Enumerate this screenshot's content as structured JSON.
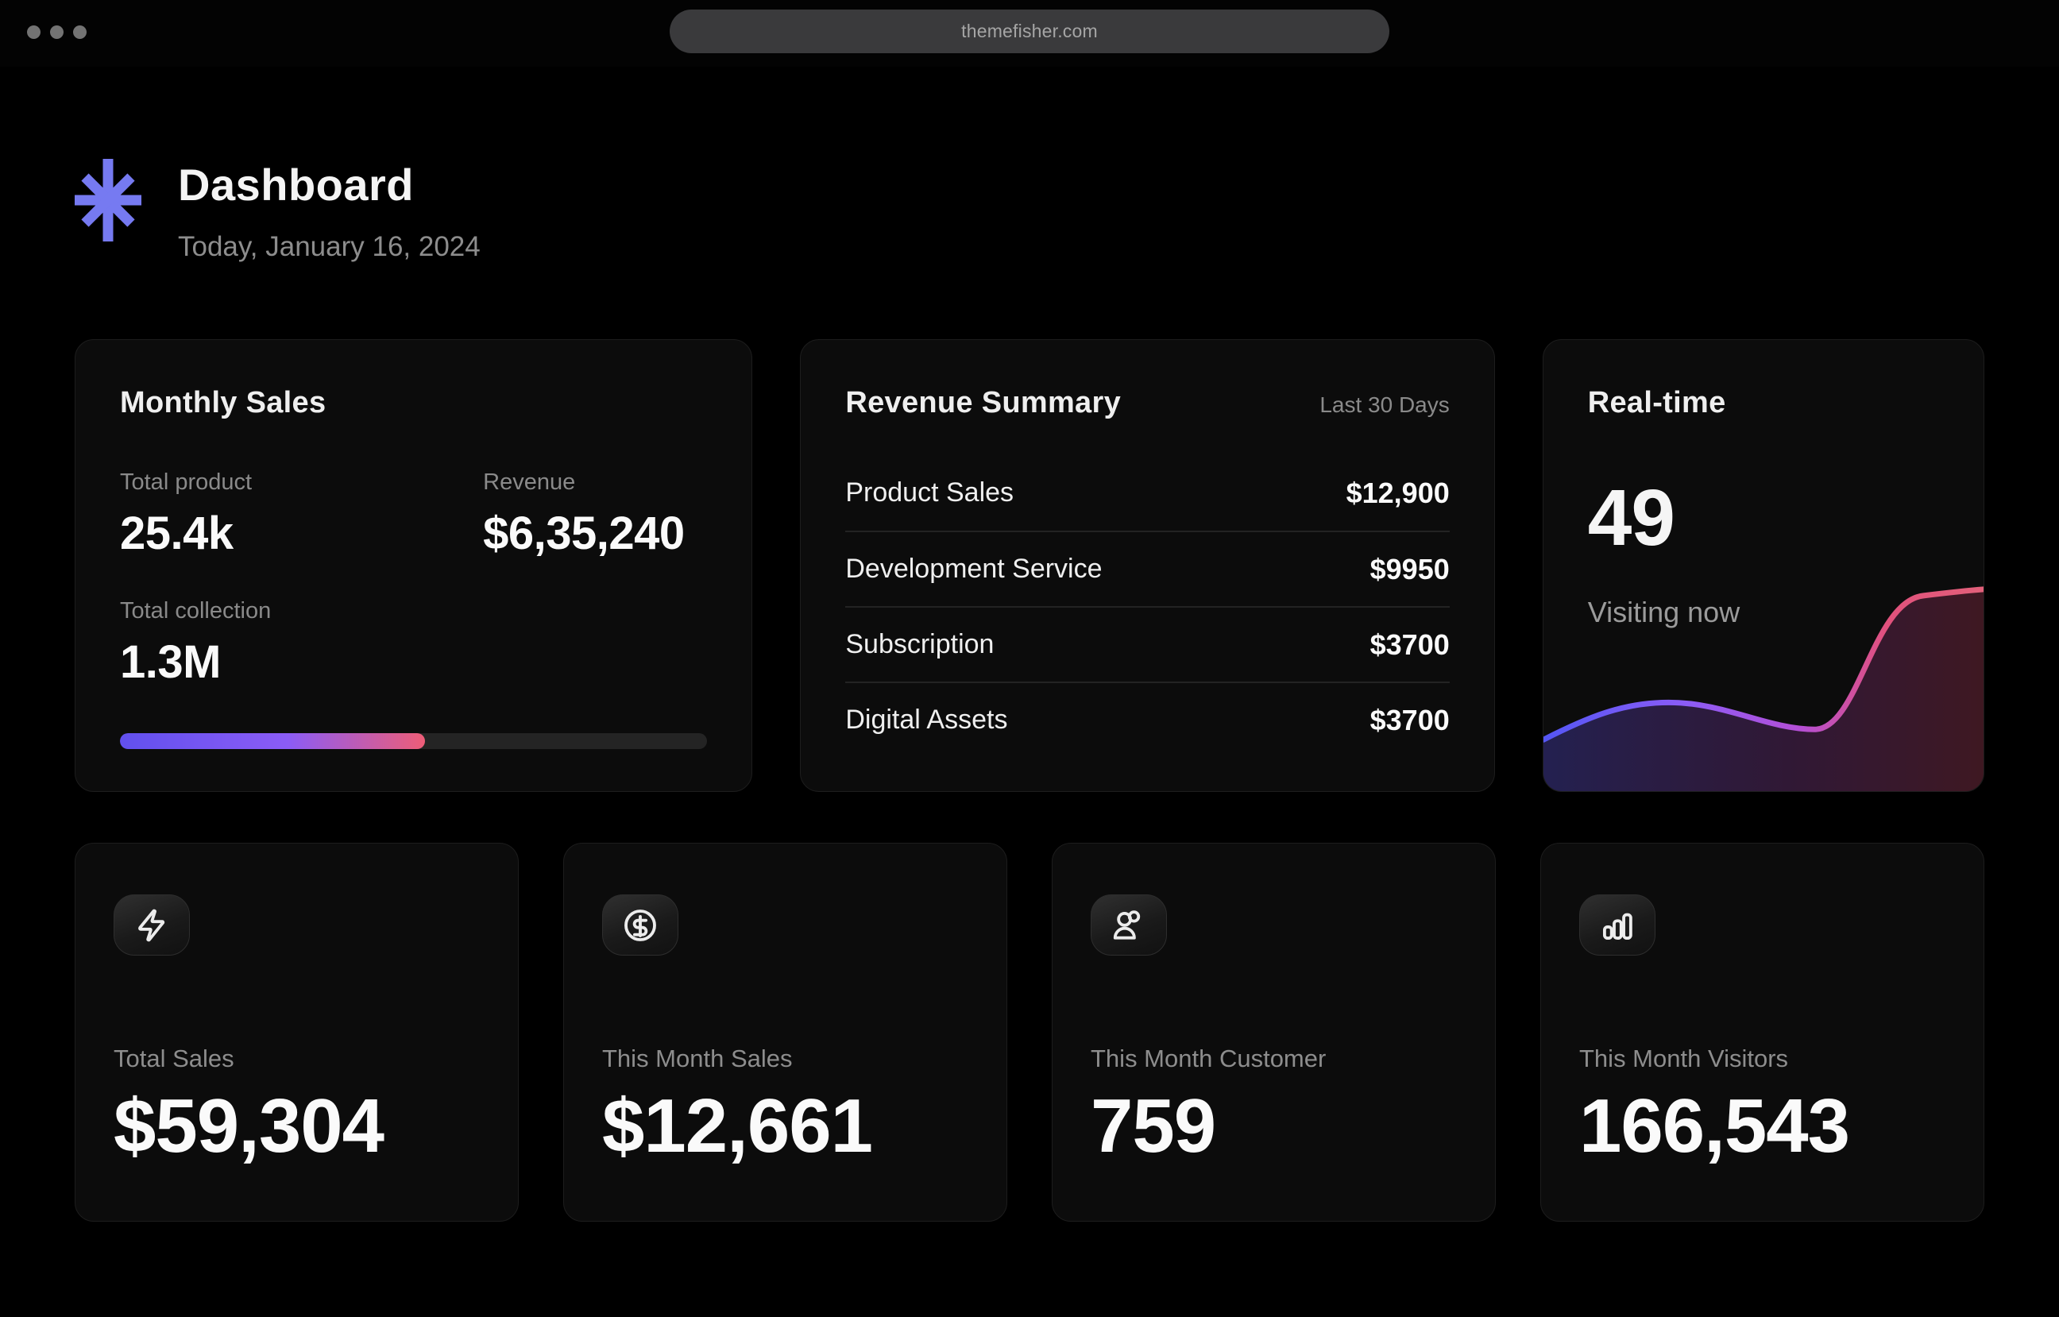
{
  "browser": {
    "url": "themefisher.com",
    "window_controls": "three-gray-dots"
  },
  "header": {
    "title": "Dashboard",
    "date": "Today, January 16, 2024",
    "logo_icon": "asterisk-icon",
    "logo_color": "#767af1"
  },
  "monthly_sales": {
    "title": "Monthly Sales",
    "metrics": [
      {
        "label": "Total product",
        "value": "25.4k"
      },
      {
        "label": "Revenue",
        "value": "$6,35,240"
      },
      {
        "label": "Total collection",
        "value": "1.3M"
      }
    ],
    "progress_percent": 52,
    "progress_gradient": [
      "#6150ee",
      "#8b5cf6",
      "#ee5d77"
    ],
    "progress_track_color": "#242424"
  },
  "revenue_summary": {
    "title": "Revenue Summary",
    "period": "Last 30 Days",
    "rows": [
      {
        "label": "Product Sales",
        "value": "$12,900"
      },
      {
        "label": "Development Service",
        "value": "$9950"
      },
      {
        "label": "Subscription",
        "value": "$3700"
      },
      {
        "label": "Digital Assets",
        "value": "$3700"
      }
    ]
  },
  "realtime": {
    "title": "Real-time",
    "value": "49",
    "label": "Visiting now",
    "line_gradient": [
      "#5456f5",
      "#8b5cf6",
      "#b44fd6",
      "#e1517c",
      "#e2607a"
    ]
  },
  "chart_data": {
    "type": "area",
    "title": "Real-time visitors sparkline",
    "x": [
      0,
      1,
      2,
      3,
      4,
      5,
      6,
      7,
      8,
      9,
      10
    ],
    "series": [
      {
        "name": "Visiting now",
        "values": [
          10,
          14,
          18,
          18,
          15,
          13,
          12,
          12,
          22,
          42,
          44
        ]
      }
    ],
    "xlabel": "",
    "ylabel": "",
    "axes_visible": false,
    "grid": false,
    "legend": "none",
    "style": "smooth line with blue-to-pink gradient stroke and translucent gradient fill"
  },
  "stats": [
    {
      "icon": "lightning-icon",
      "label": "Total Sales",
      "value": "$59,304"
    },
    {
      "icon": "dollar-circle-icon",
      "label": "This Month Sales",
      "value": "$12,661"
    },
    {
      "icon": "users-icon",
      "label": "This Month Customer",
      "value": "759"
    },
    {
      "icon": "bar-chart-icon",
      "label": "This Month Visitors",
      "value": "166,543"
    }
  ]
}
